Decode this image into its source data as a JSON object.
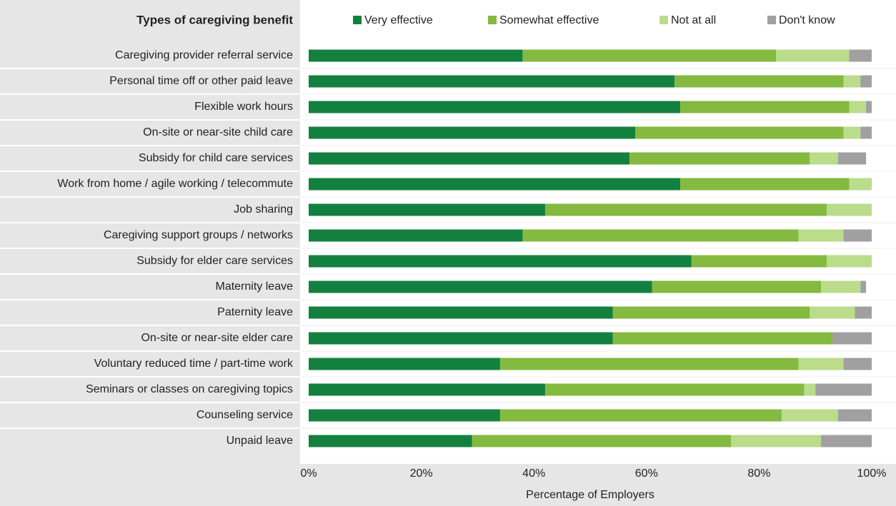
{
  "chart_data": {
    "type": "stacked-barh",
    "title": "Types of caregiving benefit",
    "x_label": "Percentage of Employers",
    "categories": [
      "Caregiving provider referral service",
      "Personal time off or other paid leave",
      "Flexible work hours",
      "On-site or near-site child care",
      "Subsidy for child care services",
      "Work from home / agile working / telecommute",
      "Job sharing",
      "Caregiving support groups / networks",
      "Subsidy for elder care services",
      "Maternity leave",
      "Paternity leave",
      "On-site or near-site elder care",
      "Voluntary reduced time / part-time work",
      "Seminars or classes on caregiving topics",
      "Counseling service",
      "Unpaid leave"
    ],
    "series": [
      {
        "name": "Very effective",
        "color": "#14803f",
        "values": [
          38,
          65,
          66,
          58,
          57,
          66,
          42,
          38,
          68,
          61,
          54,
          54,
          34,
          42,
          34,
          29
        ]
      },
      {
        "name": "Somewhat effective",
        "color": "#84ba3f",
        "values": [
          45,
          30,
          30,
          37,
          32,
          30,
          50,
          49,
          24,
          30,
          35,
          39,
          53,
          46,
          50,
          46
        ]
      },
      {
        "name": "Not at all",
        "color": "#badc8b",
        "values": [
          13,
          3,
          3,
          3,
          5,
          4,
          8,
          8,
          8,
          7,
          8,
          0,
          8,
          2,
          10,
          16
        ]
      },
      {
        "name": "Don't know",
        "color": "#a0a0a0",
        "values": [
          4,
          2,
          1,
          2,
          5,
          0,
          0,
          5,
          0,
          1,
          3,
          7,
          5,
          10,
          6,
          9
        ]
      }
    ],
    "xlim": [
      0,
      100
    ],
    "xticks": [
      {
        "value": 0,
        "label": "0%"
      },
      {
        "value": 20,
        "label": "20%"
      },
      {
        "value": 40,
        "label": "40%"
      },
      {
        "value": 60,
        "label": "60%"
      },
      {
        "value": 80,
        "label": "80%"
      },
      {
        "value": 100,
        "label": "100%"
      }
    ]
  }
}
